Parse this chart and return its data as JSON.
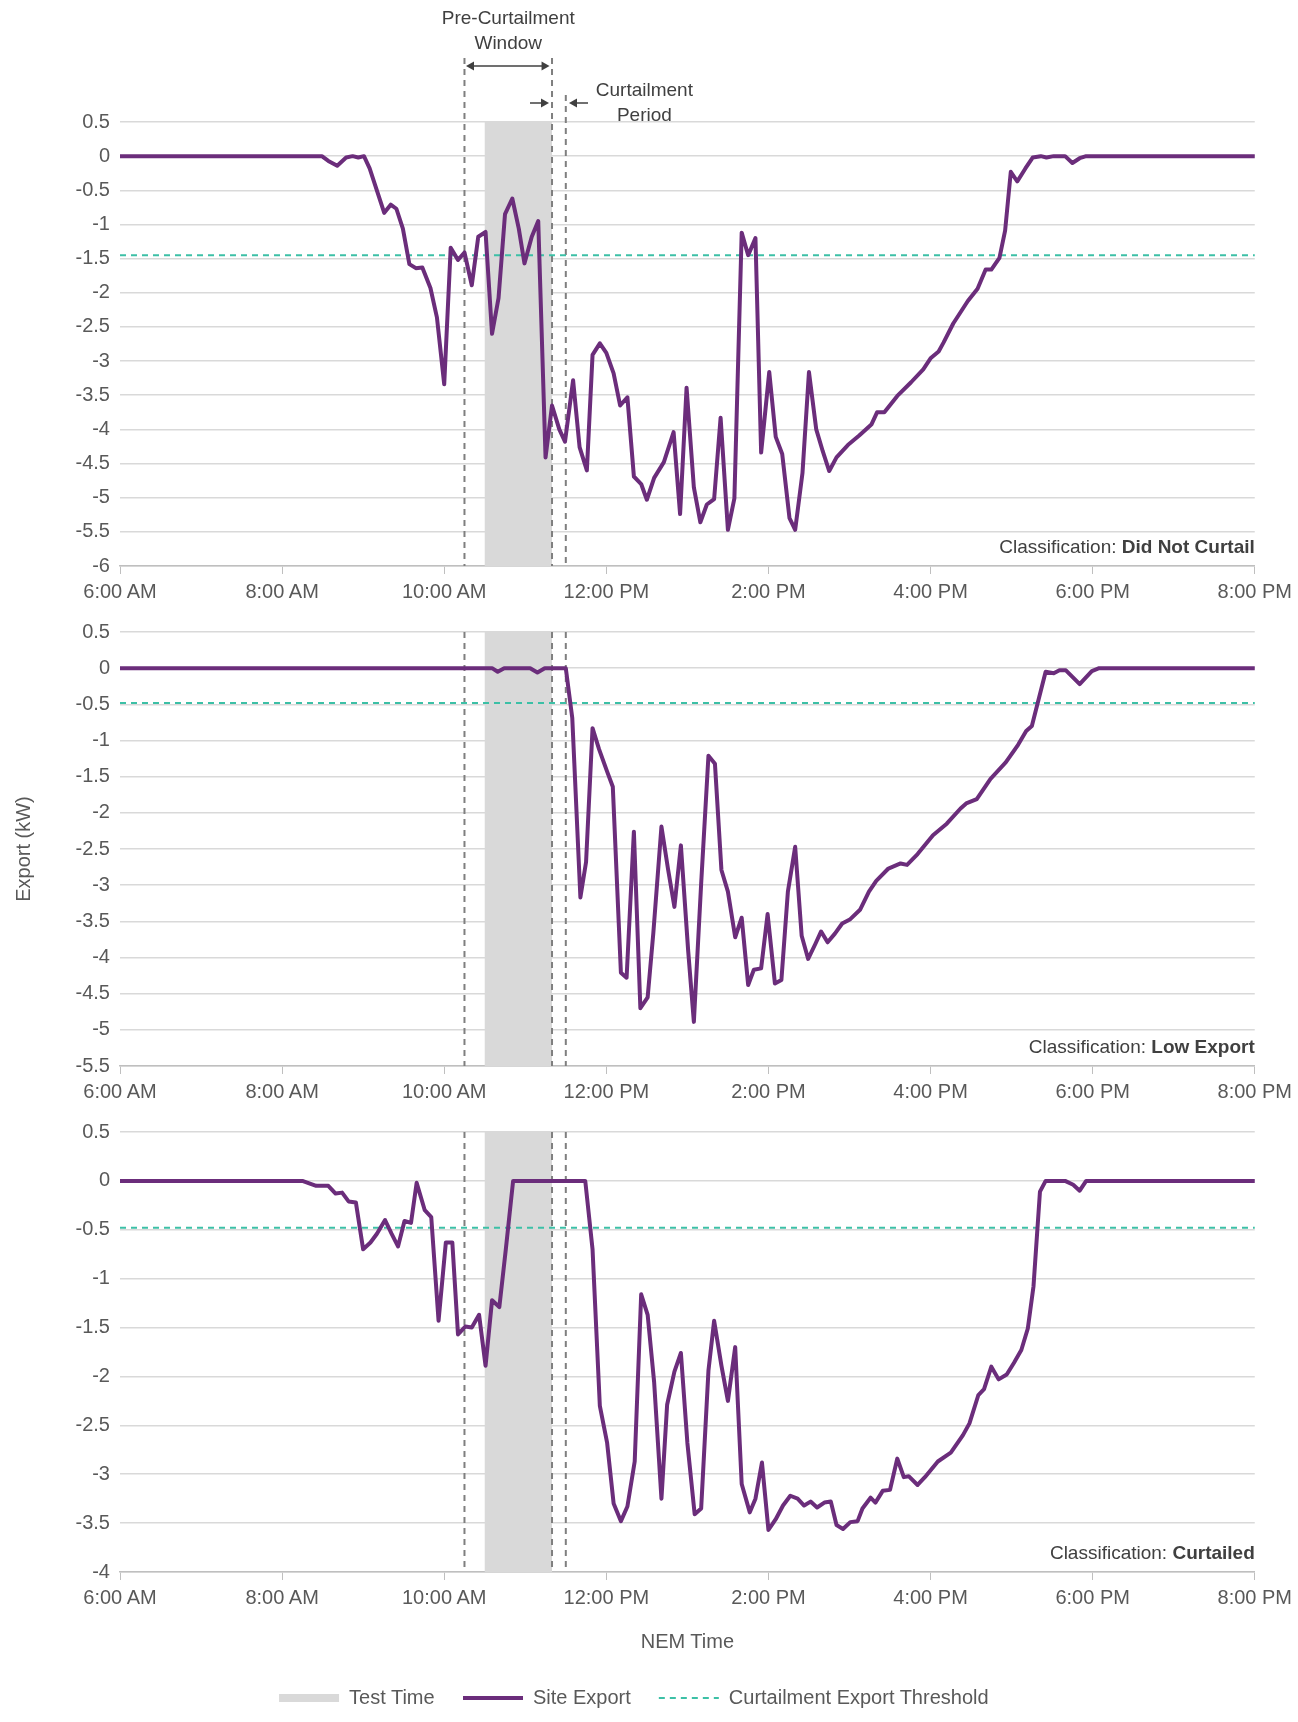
{
  "chart_data": [
    {
      "type": "line",
      "xlim": [
        6,
        20
      ],
      "xticks": [
        {
          "value": 6,
          "label": "6:00 AM"
        },
        {
          "value": 8,
          "label": "8:00 AM"
        },
        {
          "value": 10,
          "label": "10:00 AM"
        },
        {
          "value": 12,
          "label": "12:00 PM"
        },
        {
          "value": 14,
          "label": "2:00 PM"
        },
        {
          "value": 16,
          "label": "4:00 PM"
        },
        {
          "value": 18,
          "label": "6:00 PM"
        },
        {
          "value": 20,
          "label": "8:00 PM"
        }
      ],
      "ylim": [
        -6,
        0.5
      ],
      "yticks": [
        0.5,
        0,
        -0.5,
        -1,
        -1.5,
        -2,
        -2.5,
        -3,
        -3.5,
        -4,
        -4.5,
        -5,
        -5.5,
        -6
      ],
      "grid": "y",
      "series": [
        {
          "color": "#6b2d7b",
          "x": [
            6,
            8.49,
            8.57,
            8.68,
            8.79,
            8.87,
            8.94,
            9.01,
            9.08,
            9.26,
            9.34,
            9.41,
            9.49,
            9.57,
            9.65,
            9.73,
            9.83,
            9.91,
            10.0,
            10.08,
            10.17,
            10.25,
            10.34,
            10.42,
            10.51,
            10.59,
            10.67,
            10.75,
            10.84,
            10.92,
            10.99,
            11.08,
            11.16,
            11.25,
            11.33,
            11.42,
            11.49,
            11.59,
            11.67,
            11.76,
            11.83,
            11.92,
            12.0,
            12.09,
            12.17,
            12.26,
            12.34,
            12.43,
            12.5,
            12.59,
            12.71,
            12.83,
            12.91,
            12.99,
            13.08,
            13.16,
            13.24,
            13.33,
            13.41,
            13.5,
            13.58,
            13.67,
            13.75,
            13.84,
            13.91,
            14.01,
            14.09,
            14.17,
            14.26,
            14.33,
            14.42,
            14.5,
            14.59,
            14.67,
            14.75,
            14.84,
            14.98,
            15.12,
            15.27,
            15.34,
            15.43,
            15.59,
            15.76,
            15.91,
            16.0,
            16.1,
            16.16,
            16.28,
            16.46,
            16.58,
            16.68,
            16.75,
            16.85,
            16.92,
            16.99,
            17.07,
            17.17,
            17.26,
            17.36,
            17.43,
            17.52,
            17.66,
            17.75,
            17.84,
            17.92,
            20
          ],
          "values": [
            0,
            0,
            -0.07,
            -0.14,
            -0.02,
            0,
            -0.02,
            0,
            -0.18,
            -0.83,
            -0.71,
            -0.77,
            -1.06,
            -1.58,
            -1.64,
            -1.63,
            -1.93,
            -2.36,
            -3.34,
            -1.34,
            -1.52,
            -1.41,
            -1.89,
            -1.18,
            -1.11,
            -2.6,
            -2.08,
            -0.85,
            -0.62,
            -1.06,
            -1.57,
            -1.18,
            -0.95,
            -4.41,
            -3.65,
            -4.0,
            -4.18,
            -3.28,
            -4.26,
            -4.6,
            -2.91,
            -2.74,
            -2.88,
            -3.18,
            -3.65,
            -3.53,
            -4.69,
            -4.8,
            -5.03,
            -4.71,
            -4.48,
            -4.04,
            -5.24,
            -3.39,
            -4.85,
            -5.36,
            -5.1,
            -5.02,
            -3.83,
            -5.47,
            -5.01,
            -1.12,
            -1.45,
            -1.2,
            -4.34,
            -3.16,
            -4.11,
            -4.36,
            -5.3,
            -5.47,
            -4.64,
            -3.16,
            -4.0,
            -4.32,
            -4.61,
            -4.41,
            -4.23,
            -4.09,
            -3.93,
            -3.75,
            -3.75,
            -3.51,
            -3.31,
            -3.12,
            -2.96,
            -2.86,
            -2.73,
            -2.45,
            -2.12,
            -1.94,
            -1.66,
            -1.66,
            -1.49,
            -1.09,
            -0.23,
            -0.37,
            -0.18,
            -0.02,
            0,
            -0.02,
            0,
            0,
            -0.1,
            -0.03,
            0,
            0
          ]
        }
      ],
      "bands": [
        {
          "axis": "x",
          "from": 10.5,
          "to": 11.33,
          "color": "#d9d9d9"
        }
      ],
      "ref_lines": [
        {
          "axis": "x",
          "value": 10.25,
          "color": "#7f7f7f",
          "line_style": "dashed"
        },
        {
          "axis": "x",
          "value": 11.33,
          "color": "#7f7f7f",
          "line_style": "dashed"
        },
        {
          "axis": "x",
          "value": 11.5,
          "color": "#7f7f7f",
          "line_style": "dashed"
        },
        {
          "axis": "y",
          "value": -1.45,
          "color": "#3cc0a6",
          "line_style": "dashed"
        }
      ],
      "annotations": [
        "Pre-Curtailment Window",
        "Curtailment Period",
        "Classification: Did Not Curtail"
      ]
    },
    {
      "type": "line",
      "ylabel": "Export (kW)",
      "xlim": [
        6,
        20
      ],
      "xticks": [
        {
          "value": 6,
          "label": "6:00 AM"
        },
        {
          "value": 8,
          "label": "8:00 AM"
        },
        {
          "value": 10,
          "label": "10:00 AM"
        },
        {
          "value": 12,
          "label": "12:00 PM"
        },
        {
          "value": 14,
          "label": "2:00 PM"
        },
        {
          "value": 16,
          "label": "4:00 PM"
        },
        {
          "value": 18,
          "label": "6:00 PM"
        },
        {
          "value": 20,
          "label": "8:00 PM"
        }
      ],
      "ylim": [
        -5.5,
        0.5
      ],
      "yticks": [
        0.5,
        0,
        -0.5,
        -1,
        -1.5,
        -2,
        -2.5,
        -3,
        -3.5,
        -4,
        -4.5,
        -5,
        -5.5
      ],
      "grid": "y",
      "series": [
        {
          "color": "#6b2d7b",
          "x": [
            6,
            10.59,
            10.66,
            10.74,
            11.06,
            11.15,
            11.24,
            11.5,
            11.58,
            11.68,
            11.75,
            11.83,
            11.91,
            12.01,
            12.08,
            12.18,
            12.25,
            12.34,
            12.42,
            12.51,
            12.58,
            12.68,
            12.76,
            12.84,
            12.92,
            13.01,
            13.08,
            13.17,
            13.26,
            13.34,
            13.42,
            13.5,
            13.59,
            13.67,
            13.75,
            13.82,
            13.91,
            13.99,
            14.08,
            14.16,
            14.24,
            14.33,
            14.41,
            14.49,
            14.58,
            14.65,
            14.73,
            14.82,
            14.91,
            15.01,
            15.13,
            15.24,
            15.33,
            15.48,
            15.63,
            15.71,
            15.84,
            16.03,
            16.2,
            16.37,
            16.44,
            16.57,
            16.74,
            16.93,
            17.08,
            17.18,
            17.25,
            17.42,
            17.52,
            17.59,
            17.67,
            17.84,
            17.99,
            18.08,
            20
          ],
          "values": [
            0,
            0,
            -0.05,
            0,
            0,
            -0.06,
            0,
            0,
            -0.69,
            -3.17,
            -2.68,
            -0.83,
            -1.12,
            -1.43,
            -1.64,
            -4.21,
            -4.28,
            -2.26,
            -4.7,
            -4.55,
            -3.66,
            -2.19,
            -2.77,
            -3.3,
            -2.45,
            -3.91,
            -4.89,
            -2.98,
            -1.21,
            -1.32,
            -2.79,
            -3.09,
            -3.72,
            -3.45,
            -4.38,
            -4.17,
            -4.15,
            -3.4,
            -4.36,
            -4.31,
            -3.09,
            -2.47,
            -3.7,
            -4.02,
            -3.81,
            -3.64,
            -3.79,
            -3.67,
            -3.53,
            -3.47,
            -3.34,
            -3.09,
            -2.94,
            -2.77,
            -2.7,
            -2.72,
            -2.57,
            -2.31,
            -2.15,
            -1.94,
            -1.87,
            -1.81,
            -1.53,
            -1.3,
            -1.06,
            -0.87,
            -0.8,
            -0.05,
            -0.07,
            -0.03,
            -0.03,
            -0.22,
            -0.04,
            0,
            0
          ]
        }
      ],
      "bands": [
        {
          "axis": "x",
          "from": 10.5,
          "to": 11.33,
          "color": "#d9d9d9"
        }
      ],
      "ref_lines": [
        {
          "axis": "x",
          "value": 10.25,
          "color": "#7f7f7f",
          "line_style": "dashed"
        },
        {
          "axis": "x",
          "value": 11.33,
          "color": "#7f7f7f",
          "line_style": "dashed"
        },
        {
          "axis": "x",
          "value": 11.5,
          "color": "#7f7f7f",
          "line_style": "dashed"
        },
        {
          "axis": "y",
          "value": -0.48,
          "color": "#3cc0a6",
          "line_style": "dashed"
        }
      ],
      "annotations": [
        "Classification: Low Export"
      ]
    },
    {
      "type": "line",
      "xlabel": "NEM Time",
      "legend": "bottom",
      "xlim": [
        6,
        20
      ],
      "xticks": [
        {
          "value": 6,
          "label": "6:00 AM"
        },
        {
          "value": 8,
          "label": "8:00 AM"
        },
        {
          "value": 10,
          "label": "10:00 AM"
        },
        {
          "value": 12,
          "label": "12:00 PM"
        },
        {
          "value": 14,
          "label": "2:00 PM"
        },
        {
          "value": 16,
          "label": "4:00 PM"
        },
        {
          "value": 18,
          "label": "6:00 PM"
        },
        {
          "value": 20,
          "label": "8:00 PM"
        }
      ],
      "ylim": [
        -4,
        0.5
      ],
      "yticks": [
        0.5,
        0,
        -0.5,
        -1,
        -1.5,
        -2,
        -2.5,
        -3,
        -3.5,
        -4
      ],
      "grid": "y",
      "series": [
        {
          "name": "Site Export",
          "color": "#6b2d7b",
          "x": [
            6,
            8.25,
            8.42,
            8.57,
            8.66,
            8.74,
            8.82,
            8.91,
            9.0,
            9.09,
            9.17,
            9.27,
            9.35,
            9.43,
            9.51,
            9.59,
            9.66,
            9.76,
            9.84,
            9.93,
            10.02,
            10.1,
            10.17,
            10.26,
            10.34,
            10.43,
            10.51,
            10.59,
            10.68,
            10.76,
            10.85,
            11.74,
            11.83,
            11.92,
            12.01,
            12.09,
            12.18,
            12.26,
            12.35,
            12.43,
            12.51,
            12.59,
            12.68,
            12.75,
            12.84,
            12.92,
            13.0,
            13.09,
            13.17,
            13.26,
            13.33,
            13.42,
            13.5,
            13.59,
            13.67,
            13.77,
            13.84,
            13.92,
            14.0,
            14.09,
            14.18,
            14.27,
            14.36,
            14.44,
            14.52,
            14.6,
            14.69,
            14.77,
            14.84,
            14.92,
            15.01,
            15.1,
            15.16,
            15.26,
            15.32,
            15.41,
            15.5,
            15.59,
            15.67,
            15.73,
            15.84,
            15.93,
            16.09,
            16.25,
            16.4,
            16.48,
            16.59,
            16.66,
            16.75,
            16.84,
            16.94,
            17.03,
            17.12,
            17.2,
            17.27,
            17.35,
            17.42,
            17.66,
            17.76,
            17.84,
            17.92,
            20
          ],
          "values": [
            0,
            0,
            -0.05,
            -0.05,
            -0.13,
            -0.12,
            -0.21,
            -0.22,
            -0.7,
            -0.63,
            -0.54,
            -0.4,
            -0.54,
            -0.67,
            -0.41,
            -0.43,
            -0.02,
            -0.3,
            -0.37,
            -1.43,
            -0.63,
            -0.63,
            -1.57,
            -1.49,
            -1.5,
            -1.37,
            -1.89,
            -1.22,
            -1.29,
            -0.7,
            0,
            0,
            -0.7,
            -2.3,
            -2.68,
            -3.3,
            -3.48,
            -3.33,
            -2.87,
            -1.16,
            -1.37,
            -2.06,
            -3.25,
            -2.29,
            -1.95,
            -1.76,
            -2.68,
            -3.41,
            -3.35,
            -1.94,
            -1.43,
            -1.89,
            -2.25,
            -1.7,
            -3.1,
            -3.39,
            -3.25,
            -2.88,
            -3.57,
            -3.46,
            -3.32,
            -3.22,
            -3.25,
            -3.32,
            -3.28,
            -3.34,
            -3.29,
            -3.28,
            -3.52,
            -3.56,
            -3.49,
            -3.48,
            -3.35,
            -3.24,
            -3.29,
            -3.17,
            -3.16,
            -2.84,
            -3.03,
            -3.02,
            -3.11,
            -3.03,
            -2.87,
            -2.78,
            -2.6,
            -2.48,
            -2.19,
            -2.13,
            -1.9,
            -2.03,
            -1.98,
            -1.86,
            -1.73,
            -1.51,
            -1.08,
            -0.11,
            0,
            0,
            -0.04,
            -0.1,
            0,
            0
          ]
        }
      ],
      "bands": [
        {
          "axis": "x",
          "from": 10.5,
          "to": 11.33,
          "color": "#d9d9d9",
          "label": "Test Time"
        }
      ],
      "ref_lines": [
        {
          "axis": "x",
          "value": 10.25,
          "color": "#7f7f7f",
          "line_style": "dashed"
        },
        {
          "axis": "x",
          "value": 11.33,
          "color": "#7f7f7f",
          "line_style": "dashed"
        },
        {
          "axis": "x",
          "value": 11.5,
          "color": "#7f7f7f",
          "line_style": "dashed"
        },
        {
          "axis": "y",
          "value": -0.48,
          "color": "#3cc0a6",
          "line_style": "dashed",
          "label": "Curtailment Export Threshold"
        }
      ],
      "annotations": [
        "Classification: Curtailed"
      ]
    }
  ]
}
